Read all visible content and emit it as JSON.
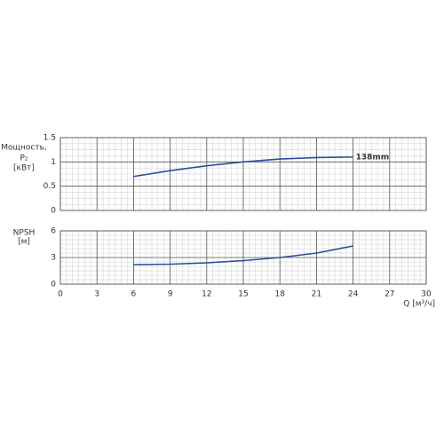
{
  "chart_data": [
    {
      "type": "line",
      "ylabel": [
        "Мощность,",
        "P₂",
        "[кВт]"
      ],
      "x": [
        6,
        9,
        12,
        15,
        18,
        21,
        24
      ],
      "series": [
        {
          "name": "138mm",
          "color": "#2a4f9a",
          "values": [
            0.7,
            0.82,
            0.92,
            1.0,
            1.06,
            1.09,
            1.1
          ]
        }
      ],
      "xlim": [
        0,
        30
      ],
      "ylim": [
        0,
        1.5
      ],
      "yticks": [
        0,
        0.5,
        1,
        1.5
      ],
      "grid": true
    },
    {
      "type": "line",
      "ylabel": [
        "NPSH",
        "[м]"
      ],
      "xlabel": "Q [м³/ч]",
      "x": [
        6,
        9,
        12,
        15,
        18,
        21,
        24
      ],
      "series": [
        {
          "color": "#2a4f9a",
          "values": [
            2.2,
            2.25,
            2.4,
            2.65,
            3.0,
            3.5,
            4.3
          ]
        }
      ],
      "xlim": [
        0,
        30
      ],
      "xticks": [
        0,
        3,
        6,
        9,
        12,
        15,
        18,
        21,
        24,
        27,
        30
      ],
      "ylim": [
        0,
        6
      ],
      "yticks": [
        0,
        3,
        6
      ],
      "grid": true
    }
  ]
}
